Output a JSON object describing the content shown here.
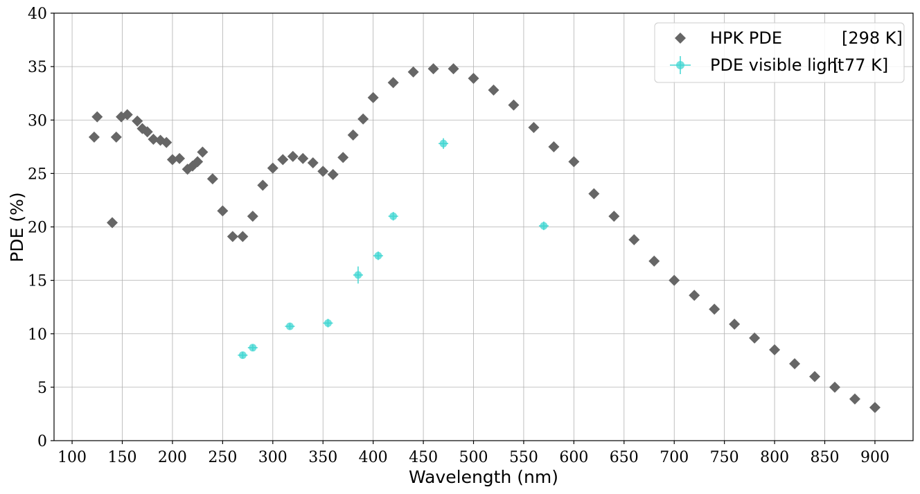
{
  "chart_data": {
    "type": "scatter",
    "xlabel": "Wavelength (nm)",
    "ylabel": "PDE (%)",
    "xlim": [
      82,
      938
    ],
    "ylim": [
      0,
      40
    ],
    "xticks": [
      100,
      150,
      200,
      250,
      300,
      350,
      400,
      450,
      500,
      550,
      600,
      650,
      700,
      750,
      800,
      850,
      900
    ],
    "yticks": [
      0,
      5,
      10,
      15,
      20,
      25,
      30,
      35,
      40
    ],
    "grid": true,
    "legend_position": "top-right",
    "series": [
      {
        "name": "HPK PDE",
        "legend_temp": "[298 K]",
        "marker": "diamond",
        "color": "#666666",
        "x": [
          122,
          125,
          140,
          144,
          149,
          155,
          165,
          170,
          175,
          181,
          188,
          194,
          200,
          207,
          215,
          220,
          225,
          230,
          240,
          250,
          260,
          270,
          280,
          290,
          300,
          310,
          320,
          330,
          340,
          350,
          360,
          370,
          380,
          390,
          400,
          420,
          440,
          460,
          480,
          500,
          520,
          540,
          560,
          580,
          600,
          620,
          640,
          660,
          680,
          700,
          720,
          740,
          760,
          780,
          800,
          820,
          840,
          860,
          880,
          900
        ],
        "y": [
          28.4,
          30.3,
          20.4,
          28.4,
          30.3,
          30.5,
          29.9,
          29.2,
          28.9,
          28.2,
          28.1,
          27.9,
          26.3,
          26.4,
          25.4,
          25.7,
          26.1,
          27.0,
          24.5,
          21.5,
          19.1,
          19.1,
          21.0,
          23.9,
          25.5,
          26.3,
          26.6,
          26.4,
          26.0,
          25.2,
          24.9,
          26.5,
          28.6,
          30.1,
          32.1,
          33.5,
          34.5,
          34.8,
          34.8,
          33.9,
          32.8,
          31.4,
          29.3,
          27.5,
          26.1,
          23.1,
          21.0,
          18.8,
          16.8,
          15.0,
          13.6,
          12.3,
          10.9,
          9.6,
          8.5,
          7.2,
          6.0,
          5.0,
          3.9,
          3.1
        ]
      },
      {
        "name": "PDE visible light",
        "legend_temp": "[ 77 K]",
        "marker": "circle",
        "color": "#40d6d2",
        "x": [
          270,
          280,
          317,
          355,
          385,
          405,
          420,
          470,
          570
        ],
        "y": [
          8.0,
          8.7,
          10.7,
          11.0,
          15.5,
          17.3,
          21.0,
          27.8,
          20.1
        ],
        "yerr": [
          0.3,
          0.3,
          0.3,
          0.4,
          0.8,
          0.4,
          0.4,
          0.5,
          0.4
        ]
      }
    ]
  }
}
